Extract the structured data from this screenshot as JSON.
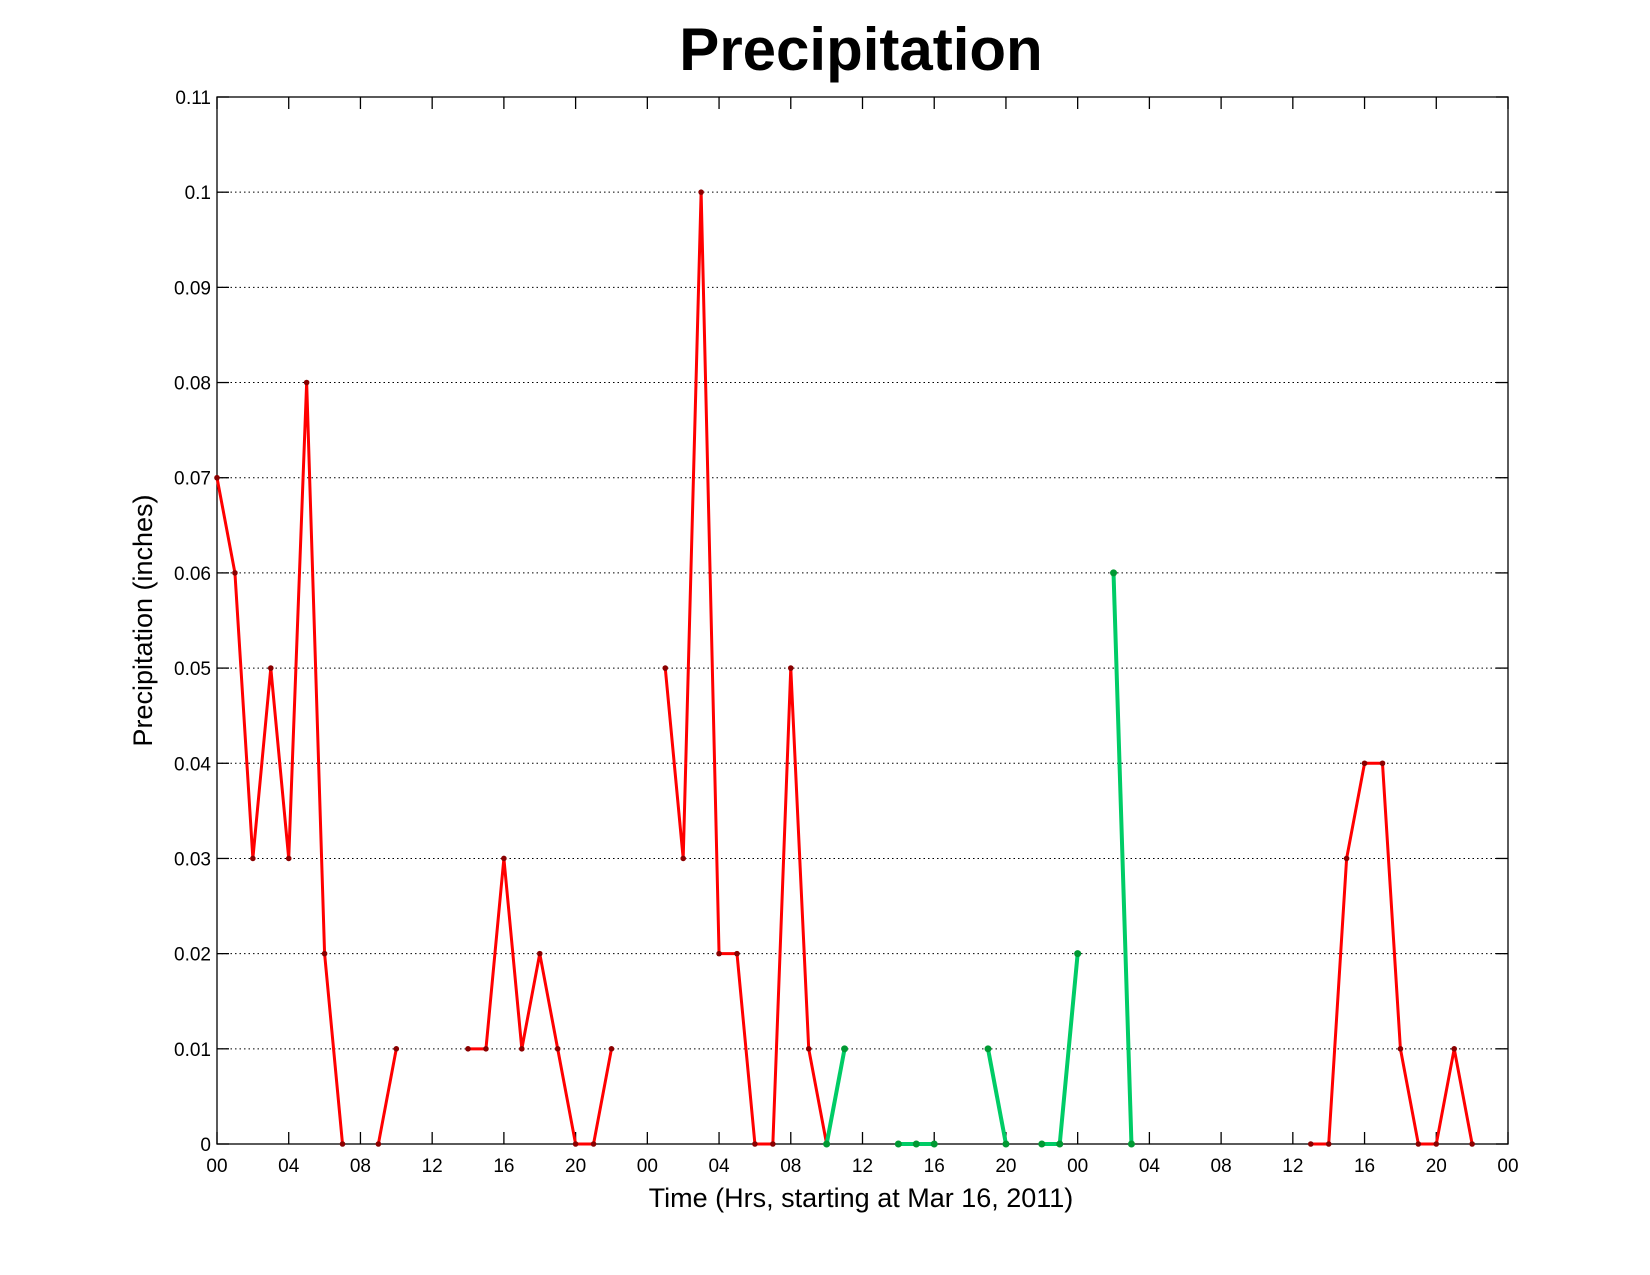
{
  "chart_data": {
    "type": "line",
    "title": "Precipitation",
    "xlabel": "Time (Hrs, starting at Mar 16, 2011)",
    "ylabel": "Precipitation (inches)",
    "xlim": [
      0,
      72
    ],
    "ylim": [
      0,
      0.11
    ],
    "grid": "y-dotted",
    "x_ticks": [
      0,
      4,
      8,
      12,
      16,
      20,
      24,
      28,
      32,
      36,
      40,
      44,
      48,
      52,
      56,
      60,
      64,
      68,
      72
    ],
    "x_tick_labels": [
      "00",
      "04",
      "08",
      "12",
      "16",
      "20",
      "00",
      "04",
      "08",
      "12",
      "16",
      "20",
      "00",
      "04",
      "08",
      "12",
      "16",
      "20",
      "00"
    ],
    "y_ticks": [
      0,
      0.01,
      0.02,
      0.03,
      0.04,
      0.05,
      0.06,
      0.07,
      0.08,
      0.09,
      0.1,
      0.11
    ],
    "y_tick_labels": [
      "0",
      "0.01",
      "0.02",
      "0.03",
      "0.04",
      "0.05",
      "0.06",
      "0.07",
      "0.08",
      "0.09",
      "0.1",
      "0.11"
    ],
    "series": [
      {
        "color": "#ff0000",
        "points": [
          [
            0,
            0.07
          ],
          [
            1,
            0.06
          ],
          [
            2,
            0.03
          ],
          [
            3,
            0.05
          ],
          [
            4,
            0.03
          ],
          [
            5,
            0.08
          ],
          [
            6,
            0.02
          ],
          [
            7,
            0
          ]
        ]
      },
      {
        "color": "#ff0000",
        "points": [
          [
            9,
            0
          ],
          [
            10,
            0.01
          ]
        ]
      },
      {
        "color": "#ff0000",
        "points": [
          [
            14,
            0.01
          ],
          [
            15,
            0.01
          ],
          [
            16,
            0.03
          ],
          [
            17,
            0.01
          ],
          [
            18,
            0.02
          ],
          [
            19,
            0.01
          ],
          [
            20,
            0
          ],
          [
            21,
            0
          ],
          [
            22,
            0.01
          ]
        ]
      },
      {
        "color": "#ff0000",
        "points": [
          [
            25,
            0.05
          ],
          [
            26,
            0.03
          ],
          [
            27,
            0.1
          ],
          [
            28,
            0.02
          ],
          [
            29,
            0.02
          ],
          [
            30,
            0
          ],
          [
            31,
            0
          ],
          [
            32,
            0.05
          ],
          [
            33,
            0.01
          ],
          [
            34,
            0
          ]
        ]
      },
      {
        "color": "#00cc66",
        "points": [
          [
            34,
            0
          ],
          [
            35,
            0.01
          ]
        ]
      },
      {
        "color": "#00cc66",
        "points": [
          [
            38,
            0
          ],
          [
            39,
            0
          ],
          [
            40,
            0
          ]
        ]
      },
      {
        "color": "#00cc66",
        "points": [
          [
            43,
            0.01
          ],
          [
            44,
            0
          ]
        ]
      },
      {
        "color": "#00cc66",
        "points": [
          [
            46,
            0
          ],
          [
            47,
            0
          ],
          [
            48,
            0.02
          ]
        ]
      },
      {
        "color": "#00cc66",
        "points": [
          [
            50,
            0.06
          ],
          [
            51,
            0
          ]
        ]
      },
      {
        "color": "#ff0000",
        "points": [
          [
            61,
            0
          ],
          [
            62,
            0
          ],
          [
            63,
            0.03
          ],
          [
            64,
            0.04
          ],
          [
            65,
            0.04
          ],
          [
            66,
            0.01
          ],
          [
            67,
            0
          ],
          [
            68,
            0
          ],
          [
            69,
            0.01
          ],
          [
            70,
            0
          ]
        ]
      }
    ]
  }
}
